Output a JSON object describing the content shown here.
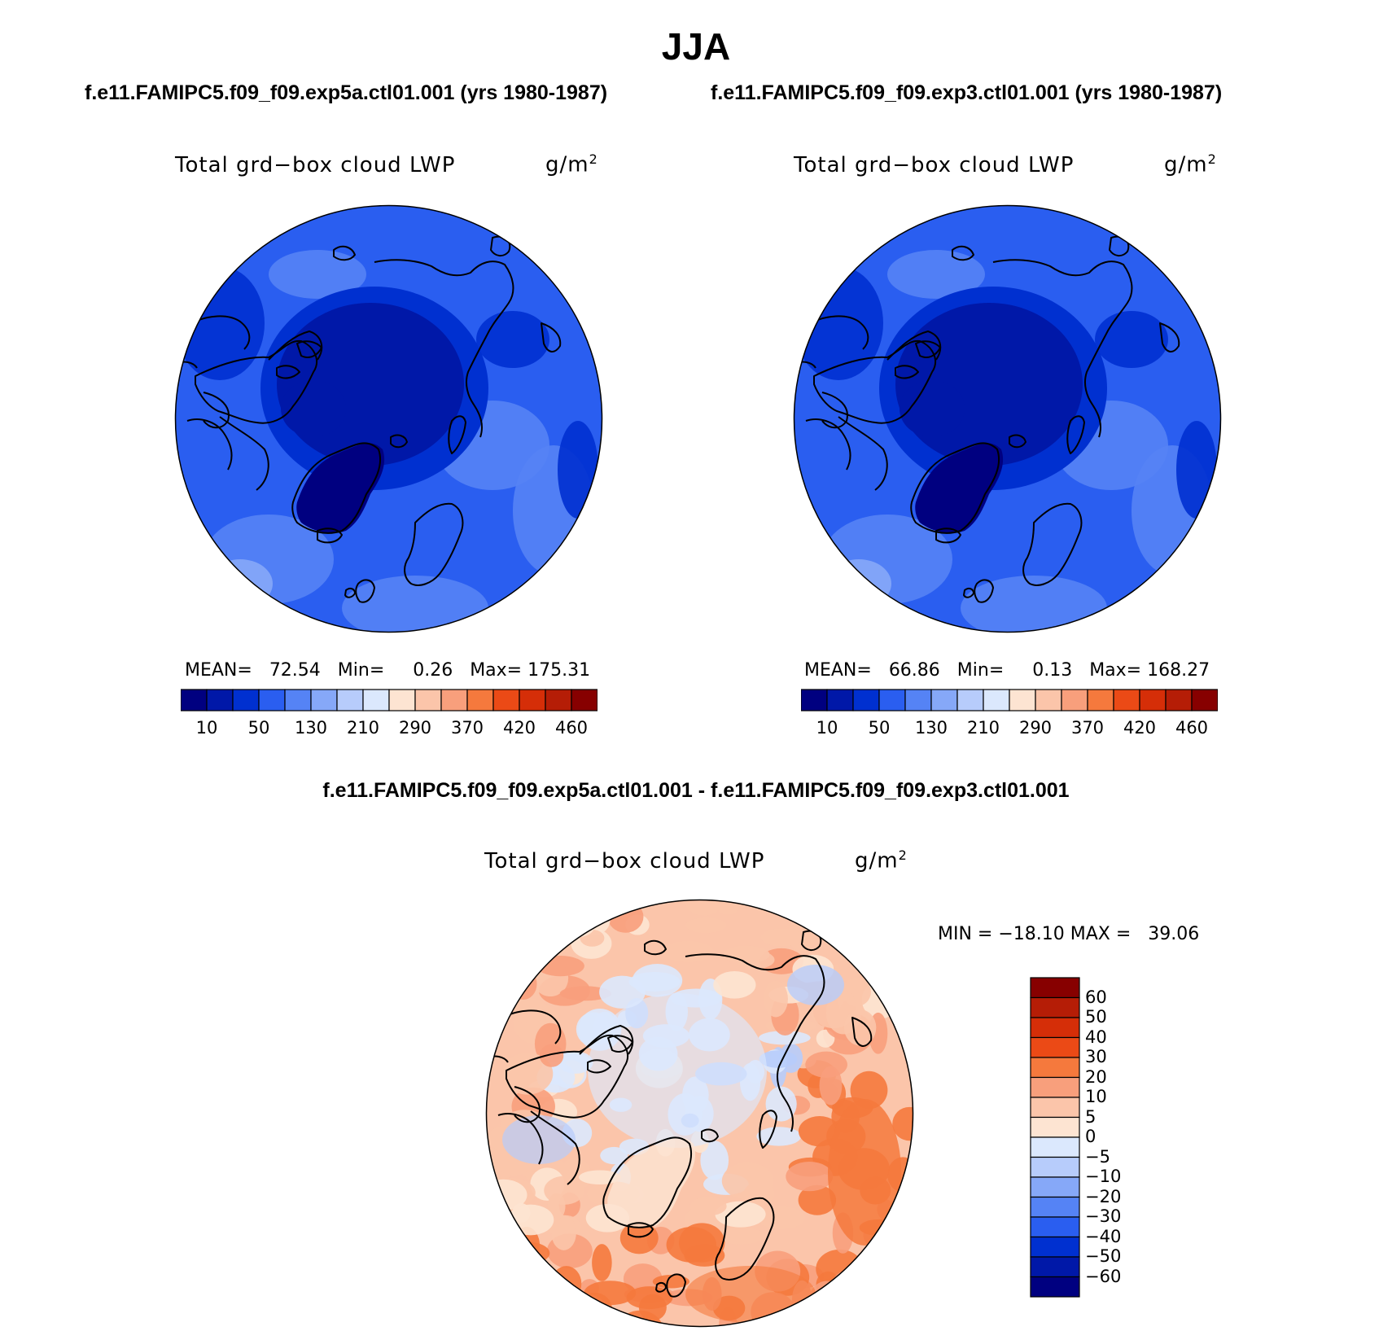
{
  "title": "JJA",
  "left_panel": {
    "case_title": "f.e11.FAMIPC5.f09_f09.exp5a.ctl01.001 (yrs 1980-1987)",
    "var_title": "Total grd−box cloud LWP",
    "units": "g/m",
    "units_exp": "2",
    "mean_label": "MEAN=",
    "mean_value": "72.54",
    "min_label": "Min=",
    "min_value": "0.26",
    "max_label": "Max=",
    "max_value": "175.31"
  },
  "right_panel": {
    "case_title": "f.e11.FAMIPC5.f09_f09.exp3.ctl01.001 (yrs 1980-1987)",
    "var_title": "Total grd−box cloud LWP",
    "units": "g/m",
    "units_exp": "2",
    "mean_label": "MEAN=",
    "mean_value": "66.86",
    "min_label": "Min=",
    "min_value": "0.13",
    "max_label": "Max=",
    "max_value": "168.27"
  },
  "diff_panel": {
    "title": "f.e11.FAMIPC5.f09_f09.exp5a.ctl01.001 - f.e11.FAMIPC5.f09_f09.exp3.ctl01.001",
    "var_title": "Total grd−box cloud LWP",
    "units": "g/m",
    "units_exp": "2",
    "minmax_text": "MIN = −18.10 MAX =   39.06"
  },
  "colors": {
    "abs_levels": [
      "#000080",
      "#0018a8",
      "#0030d0",
      "#2a5ef0",
      "#5583f5",
      "#86a8f8",
      "#b7ccfb",
      "#dbe8fd",
      "#fde4d2",
      "#fbc5aa",
      "#f89f7c",
      "#f5793d",
      "#eb4a16",
      "#d52e08",
      "#b51d06",
      "#870000"
    ],
    "diff_levels": [
      "#000080",
      "#0018a8",
      "#0030d0",
      "#2a5ef0",
      "#5583f5",
      "#86a8f8",
      "#b7ccfb",
      "#dbe8fd",
      "#fde4d2",
      "#fbc5aa",
      "#f89f7c",
      "#f5793d",
      "#eb4a16",
      "#d52e08",
      "#b51d06",
      "#870000"
    ]
  },
  "chart_data": [
    {
      "type": "heatmap",
      "title": "Total grd−box cloud LWP",
      "subtitle": "f.e11.FAMIPC5.f09_f09.exp5a.ctl01.001 (yrs 1980-1987)",
      "units": "g/m2",
      "projection": "north polar stereographic",
      "mean": 72.54,
      "min": 0.26,
      "max": 175.31,
      "colorbar_ticks": [
        10,
        50,
        130,
        210,
        290,
        370,
        420,
        460
      ]
    },
    {
      "type": "heatmap",
      "title": "Total grd−box cloud LWP",
      "subtitle": "f.e11.FAMIPC5.f09_f09.exp3.ctl01.001 (yrs 1980-1987)",
      "units": "g/m2",
      "projection": "north polar stereographic",
      "mean": 66.86,
      "min": 0.13,
      "max": 168.27,
      "colorbar_ticks": [
        10,
        50,
        130,
        210,
        290,
        370,
        420,
        460
      ]
    },
    {
      "type": "heatmap",
      "title": "Total grd−box cloud LWP",
      "subtitle": "f.e11.FAMIPC5.f09_f09.exp5a.ctl01.001 - f.e11.FAMIPC5.f09_f09.exp3.ctl01.001",
      "units": "g/m2",
      "projection": "north polar stereographic",
      "min": -18.1,
      "max": 39.06,
      "colorbar_ticks": [
        60,
        50,
        40,
        30,
        20,
        10,
        5,
        0,
        -5,
        -10,
        -20,
        -30,
        -40,
        -50,
        -60
      ]
    }
  ],
  "abs_colorbar_labels": [
    "10",
    "50",
    "130",
    "210",
    "290",
    "370",
    "420",
    "460"
  ],
  "diff_colorbar_labels": [
    "60",
    "50",
    "40",
    "30",
    "20",
    "10",
    "5",
    "0",
    "−5",
    "−10",
    "−20",
    "−30",
    "−40",
    "−50",
    "−60"
  ]
}
